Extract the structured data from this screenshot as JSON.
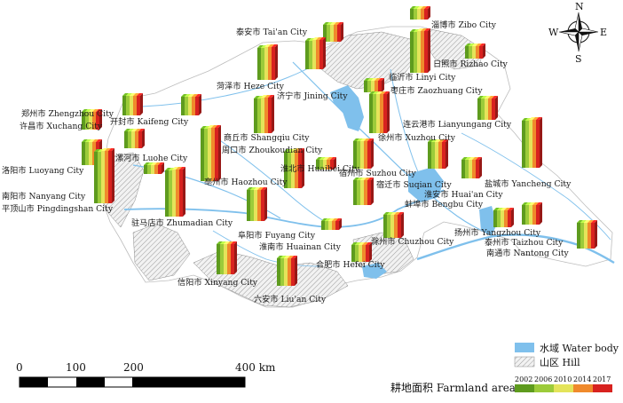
{
  "compass": {
    "north": "N",
    "south": "S",
    "east": "E",
    "west": "W"
  },
  "legend": {
    "water_label": "水域 Water body",
    "hill_label": "山区 Hill",
    "farmland_title": "耕地面积 Farmland area",
    "years": [
      "2002",
      "2006",
      "2010",
      "2014",
      "2017"
    ],
    "year_colors": [
      "#5e9b1e",
      "#9ccb3a",
      "#e4e45a",
      "#f08a2c",
      "#d8221f"
    ],
    "water_color": "#7fc0ec",
    "hill_color": "#d9d9d9"
  },
  "scale_bar": {
    "labels": [
      "0",
      "100",
      "200",
      "400 km"
    ]
  },
  "cities": [
    {
      "id": "zibo",
      "label": "淄博市 Zibo City"
    },
    {
      "id": "taian",
      "label": "泰安市 Tai'an City"
    },
    {
      "id": "heze",
      "label": "菏泽市 Heze City"
    },
    {
      "id": "jining",
      "label": "济宁市 Jining City"
    },
    {
      "id": "rizhao",
      "label": "日照市 Rizhao City"
    },
    {
      "id": "linyi",
      "label": "临沂市 Linyi City"
    },
    {
      "id": "zaozhuang",
      "label": "枣庄市 Zaozhuang City"
    },
    {
      "id": "zhengzhou",
      "label": "郑州市 Zhengzhou City"
    },
    {
      "id": "kaifeng",
      "label": "开封市 Kaifeng City"
    },
    {
      "id": "xuchang",
      "label": "许昌市 Xuchang City"
    },
    {
      "id": "shangqiu",
      "label": "商丘市 Shangqiu City"
    },
    {
      "id": "lianyungang",
      "label": "连云港市 Lianyungang City"
    },
    {
      "id": "xuzhou",
      "label": "徐州市 Xuzhou City"
    },
    {
      "id": "zhoukou",
      "label": "周口市 Zhoukoudian City"
    },
    {
      "id": "luohe",
      "label": "漯河市 Luohe City"
    },
    {
      "id": "luoyang",
      "label": "洛阳市 Luoyang City"
    },
    {
      "id": "huaibei",
      "label": "淮北市 Huaibei City"
    },
    {
      "id": "suzhou",
      "label": "宿州市 Suzhou City"
    },
    {
      "id": "nanyang",
      "label": "南阳市 Nanyang City"
    },
    {
      "id": "pingdingshan",
      "label": "平顶山市 Pingdingshan City"
    },
    {
      "id": "bozhou",
      "label": "亳州市 Haozhou City"
    },
    {
      "id": "suqian",
      "label": "宿迁市 Suqian City"
    },
    {
      "id": "yancheng",
      "label": "盐城市 Yancheng City"
    },
    {
      "id": "huaian",
      "label": "淮安市 Huai'an City"
    },
    {
      "id": "bengbu",
      "label": "蚌埠市 Bengbu City"
    },
    {
      "id": "zhumadian",
      "label": "驻马店市 Zhumadian City"
    },
    {
      "id": "fuyang",
      "label": "阜阳市 Fuyang City"
    },
    {
      "id": "huainan",
      "label": "淮南市 Huainan City"
    },
    {
      "id": "yangzhou",
      "label": "扬州市 Yangzhou City"
    },
    {
      "id": "taizhou",
      "label": "泰州市 Taizhou City"
    },
    {
      "id": "nantong",
      "label": "南通市 Nantong City"
    },
    {
      "id": "chuzhou",
      "label": "滁州市 Chuzhou City"
    },
    {
      "id": "hefei",
      "label": "合肥市 Hefei City"
    },
    {
      "id": "xinyang",
      "label": "信阳市 Xinyang City"
    },
    {
      "id": "luan",
      "label": "六安市 Liu'an City"
    }
  ],
  "farmland_bars": [
    {
      "city": "zibo",
      "heights": [
        12,
        12,
        12,
        12,
        12
      ]
    },
    {
      "city": "taian",
      "heights": [
        19,
        19,
        19,
        19,
        19
      ]
    },
    {
      "city": "heze",
      "heights": [
        36,
        36,
        37,
        37,
        37
      ]
    },
    {
      "city": "jining",
      "heights": [
        32,
        32,
        33,
        33,
        33
      ]
    },
    {
      "city": "rizhao",
      "heights": [
        14,
        14,
        14,
        14,
        14
      ]
    },
    {
      "city": "linyi",
      "heights": [
        46,
        46,
        47,
        47,
        47
      ]
    },
    {
      "city": "zaozhuang",
      "heights": [
        13,
        13,
        13,
        13,
        13
      ]
    },
    {
      "city": "zhengzhou",
      "heights": [
        22,
        22,
        22,
        22,
        22
      ]
    },
    {
      "city": "kaifeng",
      "heights": [
        21,
        21,
        21,
        21,
        21
      ]
    },
    {
      "city": "xuchang",
      "heights": [
        20,
        20,
        20,
        20,
        20
      ]
    },
    {
      "city": "shangqiu",
      "heights": [
        39,
        39,
        40,
        40,
        40
      ]
    },
    {
      "city": "lianyungang",
      "heights": [
        24,
        24,
        24,
        24,
        24
      ]
    },
    {
      "city": "xuzhou",
      "heights": [
        44,
        44,
        44,
        44,
        44
      ]
    },
    {
      "city": "zhoukou",
      "heights": [
        59,
        59,
        60,
        60,
        60
      ]
    },
    {
      "city": "luohe",
      "heights": [
        19,
        19,
        19,
        19,
        19
      ]
    },
    {
      "city": "luoyang",
      "heights": [
        26,
        26,
        26,
        26,
        26
      ]
    },
    {
      "city": "huaibei",
      "heights": [
        11,
        11,
        11,
        11,
        11
      ]
    },
    {
      "city": "suzhou",
      "heights": [
        31,
        31,
        31,
        31,
        31
      ]
    },
    {
      "city": "nanyang",
      "heights": [
        58,
        58,
        59,
        59,
        59
      ]
    },
    {
      "city": "pingdingshan",
      "heights": [
        10,
        10,
        10,
        10,
        10
      ]
    },
    {
      "city": "bozhou",
      "heights": [
        41,
        41,
        42,
        42,
        42
      ]
    },
    {
      "city": "suqian",
      "heights": [
        28,
        28,
        28,
        28,
        28
      ]
    },
    {
      "city": "yancheng",
      "heights": [
        53,
        53,
        54,
        54,
        54
      ]
    },
    {
      "city": "huaian",
      "heights": [
        30,
        30,
        30,
        30,
        30
      ]
    },
    {
      "city": "bengbu",
      "heights": [
        21,
        21,
        21,
        21,
        21
      ]
    },
    {
      "city": "zhumadian",
      "heights": [
        52,
        52,
        53,
        53,
        53
      ]
    },
    {
      "city": "fuyang",
      "heights": [
        35,
        35,
        35,
        35,
        35
      ]
    },
    {
      "city": "huainan",
      "heights": [
        10,
        10,
        10,
        10,
        10
      ]
    },
    {
      "city": "yangzhou",
      "heights": [
        19,
        19,
        19,
        19,
        19
      ]
    },
    {
      "city": "taizhou",
      "heights": [
        22,
        22,
        22,
        22,
        22
      ]
    },
    {
      "city": "nantong",
      "heights": [
        29,
        29,
        29,
        29,
        29
      ]
    },
    {
      "city": "chuzhou",
      "heights": [
        26,
        26,
        26,
        26,
        26
      ]
    },
    {
      "city": "hefei",
      "heights": [
        19,
        19,
        19,
        19,
        19
      ]
    },
    {
      "city": "xinyang",
      "heights": [
        34,
        34,
        34,
        34,
        34
      ]
    },
    {
      "city": "luan",
      "heights": [
        31,
        31,
        31,
        31,
        31
      ]
    }
  ]
}
